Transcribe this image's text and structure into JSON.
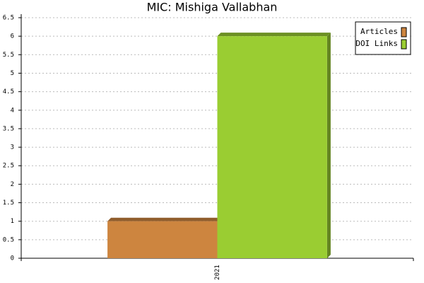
{
  "chart_data": {
    "type": "bar",
    "title": "MIC: Mishiga Vallabhan",
    "categories": [
      "2021"
    ],
    "series": [
      {
        "name": "Articles",
        "color": "#cd853f",
        "values": [
          1
        ]
      },
      {
        "name": "DOI Links",
        "color": "#9acd32",
        "values": [
          6
        ]
      }
    ],
    "ylim": [
      0,
      6.5
    ],
    "yticks": [
      0,
      0.5,
      1,
      1.5,
      2,
      2.5,
      3,
      3.5,
      4,
      4.5,
      5,
      5.5,
      6,
      6.5
    ],
    "grid": true,
    "legend": "upper right"
  }
}
